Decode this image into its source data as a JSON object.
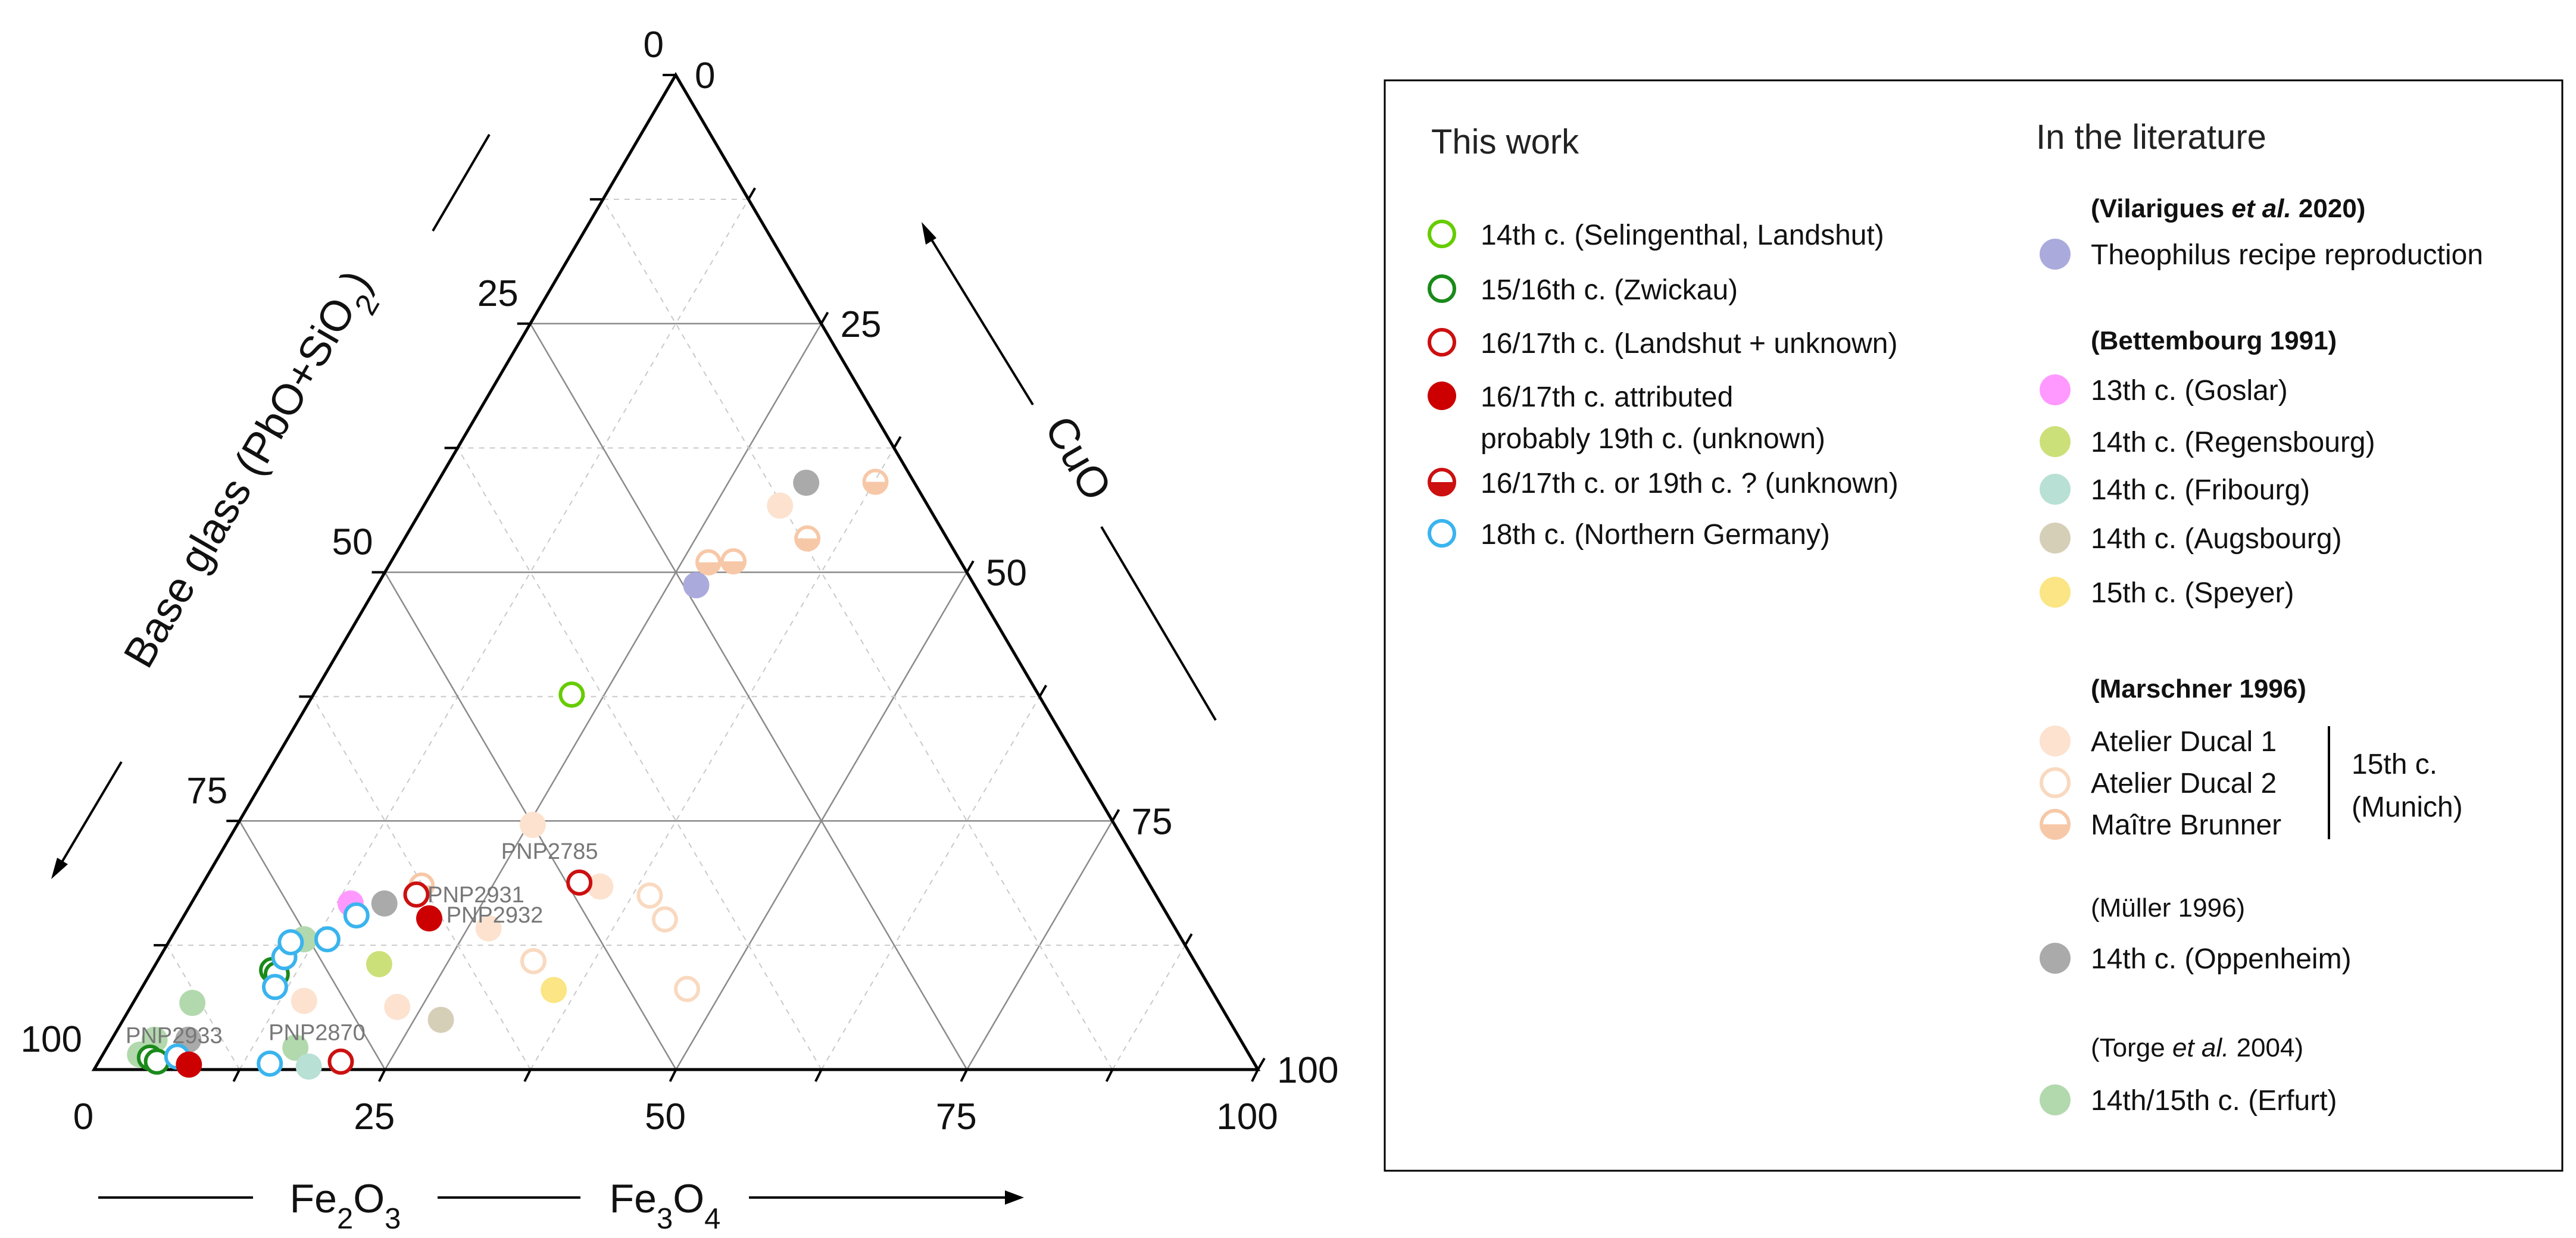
{
  "chart_data": {
    "type": "ternary-scatter",
    "axes": {
      "bottom": {
        "ticks": [
          "0",
          "25",
          "50",
          "75",
          "100"
        ],
        "label_parts": [
          "Fe",
          "2",
          "O",
          "3"
        ],
        "label_right_parts": [
          "Fe",
          "3",
          "O",
          "4"
        ]
      },
      "left": {
        "ticks": [
          "0",
          "25",
          "50",
          "75",
          "100"
        ],
        "label_parts": [
          "Base glass (PbO+SiO",
          "2",
          ")"
        ]
      },
      "right": {
        "ticks": [
          "100",
          "75",
          "50",
          "25",
          "0"
        ],
        "label": "CuO"
      },
      "range": [
        0,
        100
      ],
      "grid": true
    },
    "series": [
      {
        "key": "s14_self",
        "name": "14th c. (Selingenthal, Landshut)",
        "marker": "ring",
        "color": "#66cc00",
        "points": [
          {
            "x": 22.2,
            "y": 37.7
          }
        ]
      },
      {
        "key": "s1516_zw",
        "name": "15/16th c. (Zwickau)",
        "marker": "ring",
        "color": "#1a8a1a",
        "points": [
          {
            "x": 10.3,
            "y": 10.0
          },
          {
            "x": 10.9,
            "y": 9.6
          },
          {
            "x": 4.2,
            "y": 1.2
          },
          {
            "x": 5.0,
            "y": 0.8
          }
        ]
      },
      {
        "key": "s1617_open",
        "name": "16/17th c. (Landshut + unknown)",
        "marker": "ring",
        "color": "#cc1010",
        "points": [
          {
            "x": 32.3,
            "y": 18.8
          },
          {
            "x": 18.9,
            "y": 17.6
          },
          {
            "x": 20.8,
            "y": 0.8
          }
        ]
      },
      {
        "key": "s1617_solid",
        "name_lines": [
          "16/17th c. attributed",
          "probably 19th c. (unknown)"
        ],
        "marker": "disc",
        "color": "#cc0000",
        "points": [
          {
            "x": 21.2,
            "y": 15.2
          },
          {
            "x": 7.9,
            "y": 0.5
          }
        ]
      },
      {
        "key": "s1617_half",
        "name": "16/17th c. or 19th c. ? (unknown)",
        "marker": "half",
        "color": "#cc1010",
        "points": []
      },
      {
        "key": "s18_ng",
        "name": "18th c. (Northern Germany)",
        "marker": "ring",
        "color": "#3ab4ee",
        "points": [
          {
            "x": 14.8,
            "y": 15.5
          },
          {
            "x": 13.5,
            "y": 13.1
          },
          {
            "x": 10.7,
            "y": 11.3
          },
          {
            "x": 10.5,
            "y": 12.8
          },
          {
            "x": 11.4,
            "y": 8.3
          },
          {
            "x": 6.5,
            "y": 1.3
          },
          {
            "x": 14.8,
            "y": 0.6
          }
        ]
      },
      {
        "key": "l_theo",
        "name": "Theophilus recipe reproduction",
        "marker": "disc",
        "color": "#aaaadd",
        "points": [
          {
            "x": 27.4,
            "y": 48.7
          }
        ]
      },
      {
        "key": "l_goslar",
        "name": "13th c. (Goslar)",
        "marker": "disc",
        "color": "#ff99ff",
        "points": [
          {
            "x": 13.7,
            "y": 16.7
          }
        ]
      },
      {
        "key": "l_regens",
        "name": "14th c. (Regensbourg)",
        "marker": "disc",
        "color": "#cce07a",
        "points": [
          {
            "x": 19.2,
            "y": 10.6
          }
        ]
      },
      {
        "key": "l_fribourg",
        "name": "14th c. (Fribourg)",
        "marker": "disc",
        "color": "#b8e0d4",
        "points": [
          {
            "x": 18.3,
            "y": 0.3
          }
        ]
      },
      {
        "key": "l_augsb",
        "name": "14th c. (Augsbourg)",
        "marker": "disc",
        "color": "#d6cfb8",
        "points": [
          {
            "x": 27.3,
            "y": 5.0
          }
        ]
      },
      {
        "key": "l_speyer",
        "name": "15th c. (Speyer)",
        "marker": "disc",
        "color": "#fbe584",
        "points": [
          {
            "x": 35.5,
            "y": 8.0
          }
        ]
      },
      {
        "key": "l_ad1",
        "name": "Atelier Ducal 1",
        "marker": "disc",
        "color": "#fce2cf",
        "points": [
          {
            "x": 34.3,
            "y": 18.4
          },
          {
            "x": 25.4,
            "y": 24.6
          },
          {
            "x": 26.8,
            "y": 14.2
          },
          {
            "x": 14.6,
            "y": 6.9
          },
          {
            "x": 22.9,
            "y": 6.3
          },
          {
            "x": 30.6,
            "y": 56.7
          }
        ]
      },
      {
        "key": "l_ad2",
        "name": "Atelier Ducal 2",
        "marker": "ring",
        "color": "#f9d9bf",
        "points": [
          {
            "x": 39.0,
            "y": 17.5
          },
          {
            "x": 41.5,
            "y": 15.1
          },
          {
            "x": 32.3,
            "y": 10.9
          },
          {
            "x": 46.9,
            "y": 8.1
          }
        ]
      },
      {
        "key": "l_mb",
        "name": "Maître Brunner",
        "marker": "half-orange",
        "color": "#f7c8a8",
        "points": [
          {
            "x": 37.6,
            "y": 59.1
          },
          {
            "x": 34.6,
            "y": 53.4
          },
          {
            "x": 27.3,
            "y": 51.0
          },
          {
            "x": 29.4,
            "y": 51.1
          },
          {
            "x": 18.9,
            "y": 18.5
          }
        ]
      },
      {
        "key": "l_oppen",
        "name": "14th c. (Oppenheim)",
        "marker": "disc",
        "color": "#aaaaaa",
        "points": [
          {
            "x": 31.7,
            "y": 59.0
          },
          {
            "x": 16.6,
            "y": 16.7
          },
          {
            "x": 6.6,
            "y": 3.0
          }
        ]
      },
      {
        "key": "l_erfurt",
        "name": "14th/15th c. (Erfurt)",
        "marker": "disc",
        "color": "#b2d9ad",
        "points": [
          {
            "x": 11.5,
            "y": 13.1
          },
          {
            "x": 5.1,
            "y": 6.7
          },
          {
            "x": 3.7,
            "y": 3.0
          },
          {
            "x": 3.2,
            "y": 1.5
          },
          {
            "x": 16.2,
            "y": 2.2
          }
        ]
      }
    ],
    "annotations": [
      {
        "text": "PNP2785",
        "x": 32.3,
        "y": 18.8
      },
      {
        "text": "PNP2931",
        "x": 18.9,
        "y": 17.6
      },
      {
        "text": "PNP2932",
        "x": 21.2,
        "y": 15.2
      },
      {
        "text": "PNP2933",
        "x": 7.9,
        "y": 0.5
      },
      {
        "text": "PNP2870",
        "x": 20.8,
        "y": 0.8
      }
    ]
  },
  "legend": {
    "this_work_heading": "This work",
    "literature_heading": "In the literature",
    "this_work_items": [
      "s14_self",
      "s1516_zw",
      "s1617_open",
      "s1617_solid",
      "s1617_half",
      "s18_ng"
    ],
    "groups": [
      {
        "ref_parts": [
          "(Vilarigues ",
          "et al.",
          " 2020)"
        ],
        "bold": true,
        "items": [
          "l_theo"
        ]
      },
      {
        "ref_parts": [
          "(Bettembourg 1991)"
        ],
        "bold": true,
        "items": [
          "l_goslar",
          "l_regens",
          "l_fribourg",
          "l_augsb",
          "l_speyer"
        ]
      },
      {
        "ref_parts": [
          "(Marschner 1996)"
        ],
        "bold": true,
        "items": [
          "l_ad1",
          "l_ad2",
          "l_mb"
        ],
        "bracket_lines": [
          "15th c.",
          "(Munich)"
        ]
      },
      {
        "ref_parts": [
          "(Müller 1996)"
        ],
        "bold": false,
        "items": [
          "l_oppen"
        ]
      },
      {
        "ref_parts": [
          "(Torge ",
          "et al.",
          " 2004)"
        ],
        "bold": false,
        "items": [
          "l_erfurt"
        ]
      }
    ]
  }
}
